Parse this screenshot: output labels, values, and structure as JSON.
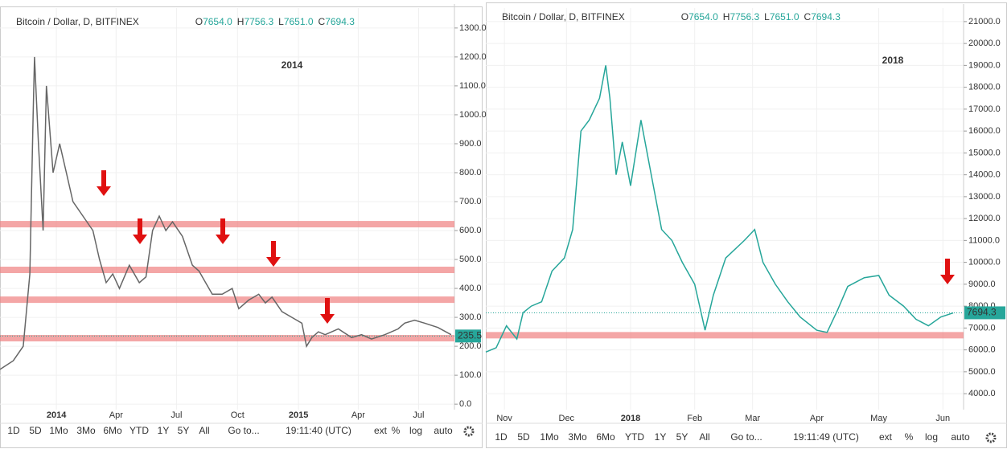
{
  "chart_data": [
    {
      "type": "line",
      "symbol": "Bitcoin / Dollar, D, BITFINEX",
      "ohlc": [
        {
          "key": "O",
          "value": "7654.0"
        },
        {
          "key": "H",
          "value": "7756.3"
        },
        {
          "key": "L",
          "value": "7651.0"
        },
        {
          "key": "C",
          "value": "7694.3"
        }
      ],
      "annotation": "2014",
      "x": [
        0,
        20,
        35,
        45,
        50,
        52,
        58,
        65,
        70,
        80,
        90,
        100,
        110,
        125,
        140,
        150,
        160,
        170,
        180,
        195,
        210,
        220,
        230,
        240,
        250,
        260,
        275,
        290,
        300,
        320,
        335,
        350,
        360,
        375,
        390,
        400,
        410,
        425,
        440,
        455,
        462,
        470,
        480,
        490,
        510,
        530,
        545,
        560,
        580,
        600,
        610,
        625,
        640,
        660,
        680
      ],
      "values": [
        120,
        150,
        200,
        450,
        1000,
        1200,
        900,
        600,
        1100,
        800,
        900,
        800,
        700,
        650,
        600,
        500,
        420,
        450,
        400,
        480,
        420,
        440,
        600,
        650,
        600,
        630,
        580,
        480,
        460,
        380,
        380,
        400,
        330,
        360,
        380,
        350,
        370,
        320,
        300,
        280,
        200,
        230,
        250,
        240,
        260,
        230,
        240,
        225,
        240,
        260,
        280,
        290,
        280,
        265,
        240
      ],
      "color": "#666666",
      "xlim": [
        0,
        685
      ],
      "xticks": [
        {
          "value": 85,
          "label": "2014"
        },
        {
          "value": 175,
          "label": "Apr"
        },
        {
          "value": 266,
          "label": "Jul"
        },
        {
          "value": 358,
          "label": "Oct"
        },
        {
          "value": 450,
          "label": "2015"
        },
        {
          "value": 540,
          "label": "Apr"
        },
        {
          "value": 631,
          "label": "Jul"
        }
      ],
      "ylim": [
        -19,
        1369
      ],
      "yticks": [
        {
          "value": 0,
          "label": "0.0"
        },
        {
          "value": 100,
          "label": "100.0"
        },
        {
          "value": 200,
          "label": "200.0"
        },
        {
          "value": 300,
          "label": "300.0"
        },
        {
          "value": 400,
          "label": "400.0"
        },
        {
          "value": 500,
          "label": "500.0"
        },
        {
          "value": 600,
          "label": "600.0"
        },
        {
          "value": 700,
          "label": "700.0"
        },
        {
          "value": 800,
          "label": "800.0"
        },
        {
          "value": 900,
          "label": "900.0"
        },
        {
          "value": 1000,
          "label": "1000.0"
        },
        {
          "value": 1100,
          "label": "1100.0"
        },
        {
          "value": 1200,
          "label": "1200.0"
        },
        {
          "value": 1300,
          "label": "1300.0"
        }
      ],
      "last_price": {
        "value": 235.5,
        "label": "235.5"
      },
      "levels": [
        622,
        464,
        361,
        228
      ],
      "level_color": "#f08080",
      "grid": true,
      "toolbar": {
        "ranges": [
          "1D",
          "5D",
          "1Mo",
          "3Mo",
          "6Mo",
          "YTD",
          "1Y",
          "5Y",
          "All"
        ],
        "goto": "Go to...",
        "time": "19:11:40 (UTC)",
        "options": [
          "ext",
          "%",
          "log",
          "auto"
        ]
      }
    },
    {
      "type": "line",
      "symbol": "Bitcoin / Dollar, D, BITFINEX",
      "ohlc": [
        {
          "key": "O",
          "value": "7654.0"
        },
        {
          "key": "H",
          "value": "7756.3"
        },
        {
          "key": "L",
          "value": "7651.0"
        },
        {
          "key": "C",
          "value": "7694.3"
        }
      ],
      "annotation": "2018",
      "x": [
        0,
        5,
        10,
        15,
        18,
        22,
        27,
        32,
        38,
        42,
        46,
        50,
        55,
        58,
        60,
        63,
        66,
        70,
        75,
        80,
        85,
        90,
        95,
        101,
        106,
        110,
        116,
        125,
        130,
        134,
        140,
        146,
        152,
        160,
        165,
        170,
        175,
        183,
        190,
        195,
        202,
        208,
        214,
        220,
        226
      ],
      "values": [
        5900,
        6100,
        7100,
        6500,
        7700,
        8000,
        8200,
        9600,
        10200,
        11500,
        16000,
        16500,
        17500,
        19000,
        17500,
        14000,
        15500,
        13500,
        16500,
        14000,
        11500,
        11000,
        10000,
        9000,
        6900,
        8500,
        10200,
        11000,
        11500,
        10000,
        9000,
        8200,
        7500,
        6900,
        6800,
        7800,
        8900,
        9300,
        9400,
        8500,
        8000,
        7400,
        7100,
        7500,
        7690
      ],
      "color": "#26a69a",
      "xlim": [
        0,
        231
      ],
      "xticks": [
        {
          "value": 9,
          "label": "Nov"
        },
        {
          "value": 39,
          "label": "Dec"
        },
        {
          "value": 70,
          "label": "2018"
        },
        {
          "value": 101,
          "label": "Feb"
        },
        {
          "value": 129,
          "label": "Mar"
        },
        {
          "value": 160,
          "label": "Apr"
        },
        {
          "value": 190,
          "label": "May"
        },
        {
          "value": 221,
          "label": "Jun"
        }
      ],
      "ylim": [
        3270,
        21620
      ],
      "yticks": [
        {
          "value": 4000,
          "label": "4000.0"
        },
        {
          "value": 5000,
          "label": "5000.0"
        },
        {
          "value": 6000,
          "label": "6000.0"
        },
        {
          "value": 7000,
          "label": "7000.0"
        },
        {
          "value": 8000,
          "label": "8000.0"
        },
        {
          "value": 9000,
          "label": "9000.0"
        },
        {
          "value": 10000,
          "label": "10000.0"
        },
        {
          "value": 11000,
          "label": "11000.0"
        },
        {
          "value": 12000,
          "label": "12000.0"
        },
        {
          "value": 13000,
          "label": "13000.0"
        },
        {
          "value": 14000,
          "label": "14000.0"
        },
        {
          "value": 15000,
          "label": "15000.0"
        },
        {
          "value": 16000,
          "label": "16000.0"
        },
        {
          "value": 17000,
          "label": "17000.0"
        },
        {
          "value": 18000,
          "label": "18000.0"
        },
        {
          "value": 19000,
          "label": "19000.0"
        },
        {
          "value": 20000,
          "label": "20000.0"
        },
        {
          "value": 21000,
          "label": "21000.0"
        }
      ],
      "last_price": {
        "value": 7694.3,
        "label": "7694.3"
      },
      "levels": [
        6670
      ],
      "level_color": "#f08080",
      "grid": true,
      "toolbar": {
        "ranges": [
          "1D",
          "5D",
          "1Mo",
          "3Mo",
          "6Mo",
          "YTD",
          "1Y",
          "5Y",
          "All"
        ],
        "goto": "Go to...",
        "time": "19:11:49 (UTC)",
        "options": [
          "ext",
          "%",
          "log",
          "auto"
        ]
      }
    }
  ]
}
